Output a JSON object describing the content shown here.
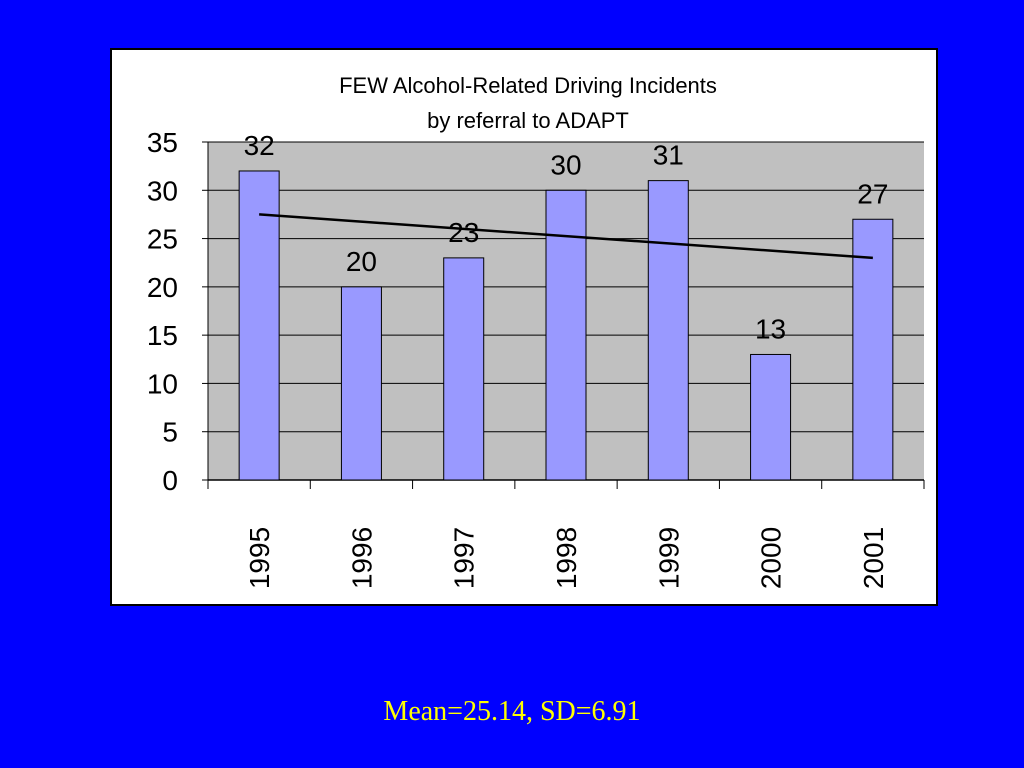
{
  "slide": {
    "background": "#0000ff",
    "footer_text": "Mean=25.14, SD=6.91",
    "footer_color": "#ffff00"
  },
  "chart_data": {
    "type": "bar",
    "title": "FEW Alcohol-Related Driving Incidents",
    "subtitle": "by referral to ADAPT",
    "categories": [
      "1995",
      "1996",
      "1997",
      "1998",
      "1999",
      "2000",
      "2001"
    ],
    "values": [
      32,
      20,
      23,
      30,
      31,
      13,
      27
    ],
    "data_labels": [
      "32",
      "20",
      "23",
      "30",
      "31",
      "13",
      "27"
    ],
    "y_ticks": [
      "0",
      "5",
      "10",
      "15",
      "20",
      "25",
      "30",
      "35"
    ],
    "ylim": [
      0,
      35
    ],
    "y_step": 5,
    "grid": true,
    "legend": "none",
    "trendline": {
      "type": "linear",
      "start": 27.5,
      "end": 23.0
    },
    "colors": {
      "bar_fill": "#9999ff",
      "plot_area": "#c0c0c0",
      "gridline": "#000000",
      "trendline": "#000000"
    }
  }
}
